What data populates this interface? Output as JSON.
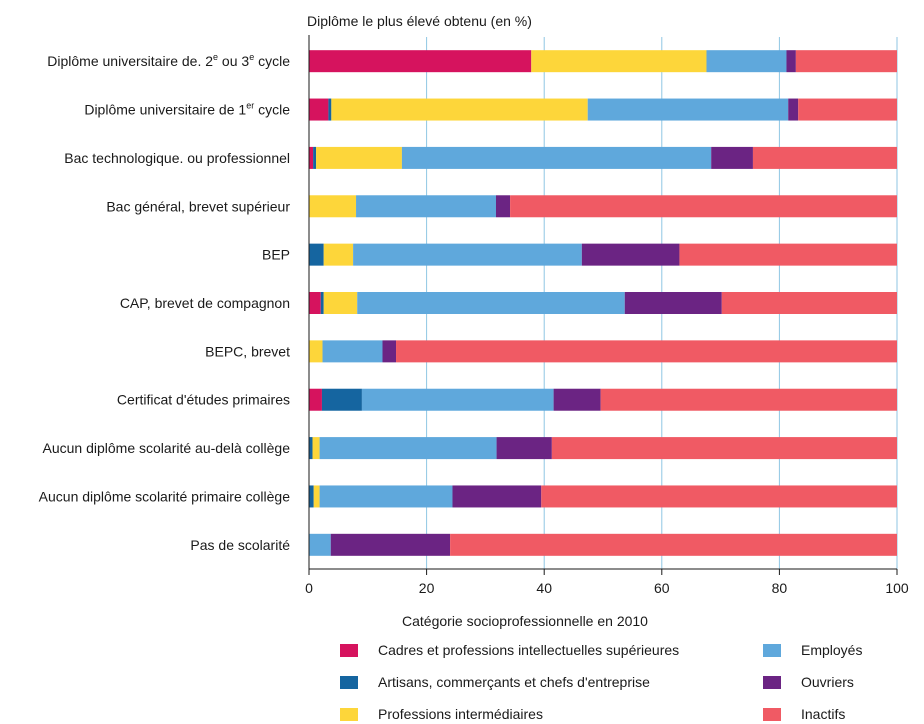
{
  "chart_data": {
    "type": "bar",
    "orientation": "horizontal",
    "stacked": true,
    "title": "Diplôme le plus élevé obtenu (en %)",
    "xlabel": "Catégorie socioprofessionnelle en 2010",
    "ylabel": "",
    "xlim": [
      0,
      100
    ],
    "xticks": [
      0,
      20,
      40,
      60,
      80,
      100
    ],
    "grid": "vertical",
    "legend_position": "bottom",
    "categories": [
      "Diplôme universitaire de. 2e ou 3e cycle",
      "Diplôme universitaire de 1er cycle",
      "Bac technologique. ou professionnel",
      "Bac général, brevet supérieur",
      "BEP",
      "CAP, brevet de compagnon",
      "BEPC, brevet",
      "Certificat d'études primaires",
      "Aucun diplôme scolarité au-delà collège",
      "Aucun diplôme scolarité primaire collège",
      "Pas de scolarité"
    ],
    "category_labels": [
      {
        "text": "Diplôme universitaire de. 2",
        "sup": "e",
        "after": " ou 3",
        "sup2": "e",
        "tail": " cycle"
      },
      {
        "text": "Diplôme universitaire de 1",
        "sup": "er",
        "after": " cycle",
        "sup2": "",
        "tail": ""
      },
      {
        "text": "Bac technologique. ou professionnel",
        "sup": "",
        "after": "",
        "sup2": "",
        "tail": ""
      },
      {
        "text": "Bac général, brevet supérieur",
        "sup": "",
        "after": "",
        "sup2": "",
        "tail": ""
      },
      {
        "text": "BEP",
        "sup": "",
        "after": "",
        "sup2": "",
        "tail": ""
      },
      {
        "text": "CAP, brevet de compagnon",
        "sup": "",
        "after": "",
        "sup2": "",
        "tail": ""
      },
      {
        "text": "BEPC, brevet",
        "sup": "",
        "after": "",
        "sup2": "",
        "tail": ""
      },
      {
        "text": "Certificat d'études primaires",
        "sup": "",
        "after": "",
        "sup2": "",
        "tail": ""
      },
      {
        "text": "Aucun diplôme scolarité au-delà collège",
        "sup": "",
        "after": "",
        "sup2": "",
        "tail": ""
      },
      {
        "text": "Aucun diplôme scolarité primaire collège",
        "sup": "",
        "after": "",
        "sup2": "",
        "tail": ""
      },
      {
        "text": "Pas de scolarité",
        "sup": "",
        "after": "",
        "sup2": "",
        "tail": ""
      }
    ],
    "series": [
      {
        "name": "Cadres et professions intellectuelles supérieures",
        "color": "#d6135e",
        "values": [
          37.8,
          3.3,
          0.7,
          0.0,
          0.0,
          2.0,
          0.0,
          2.2,
          0.0,
          0.0,
          0.0
        ]
      },
      {
        "name": "Artisans, commerçants et chefs d'entreprise",
        "color": "#1565a0",
        "values": [
          0.0,
          0.5,
          0.5,
          0.0,
          2.5,
          0.5,
          0.0,
          6.8,
          0.6,
          0.8,
          0.0
        ]
      },
      {
        "name": "Professions intermédiaires",
        "color": "#fdd63a",
        "values": [
          29.8,
          43.6,
          14.6,
          8.0,
          5.0,
          5.7,
          2.3,
          0.0,
          1.2,
          1.0,
          0.0
        ]
      },
      {
        "name": "Employés",
        "color": "#5fa8dc",
        "values": [
          13.6,
          34.1,
          52.6,
          23.8,
          38.9,
          45.5,
          10.2,
          32.6,
          30.1,
          22.6,
          3.7
        ]
      },
      {
        "name": "Ouvriers",
        "color": "#6b2483",
        "values": [
          1.6,
          1.7,
          7.1,
          2.4,
          16.6,
          16.5,
          2.3,
          8.0,
          9.4,
          15.1,
          20.3
        ]
      },
      {
        "name": "Inactifs",
        "color": "#f05a64",
        "values": [
          17.2,
          16.8,
          24.5,
          65.8,
          37.0,
          29.8,
          85.2,
          50.4,
          58.7,
          60.5,
          76.0
        ]
      }
    ]
  },
  "legend": {
    "items": [
      {
        "label": "Cadres et professions intellectuelles supérieures",
        "color": "#d6135e"
      },
      {
        "label": "Employés",
        "color": "#5fa8dc"
      },
      {
        "label": "Artisans, commerçants et chefs d'entreprise",
        "color": "#1565a0"
      },
      {
        "label": "Ouvriers",
        "color": "#6b2483"
      },
      {
        "label": "Professions intermédiaires",
        "color": "#fdd63a"
      },
      {
        "label": "Inactifs",
        "color": "#f05a64"
      }
    ]
  }
}
